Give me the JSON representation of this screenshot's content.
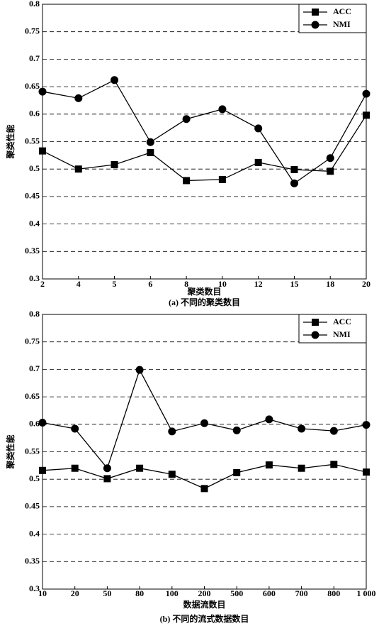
{
  "chart_data": [
    {
      "type": "line",
      "ylabel": "聚类性能",
      "xlabel": "聚类数目",
      "caption": "(a) 不同的聚类数目",
      "categories": [
        "2",
        "4",
        "5",
        "6",
        "8",
        "10",
        "12",
        "15",
        "18",
        "20"
      ],
      "series": [
        {
          "name": "ACC",
          "color": "#000000",
          "marker": "square",
          "values": [
            0.533,
            0.5,
            0.508,
            0.53,
            0.479,
            0.481,
            0.512,
            0.499,
            0.496,
            0.598
          ]
        },
        {
          "name": "NMI",
          "color": "#000000",
          "marker": "circle",
          "values": [
            0.641,
            0.629,
            0.662,
            0.549,
            0.591,
            0.609,
            0.574,
            0.474,
            0.52,
            0.637
          ]
        }
      ],
      "ylim": [
        0.3,
        0.8
      ],
      "yticks": [
        0.3,
        0.35,
        0.4,
        0.45,
        0.5,
        0.55,
        0.6,
        0.65,
        0.7,
        0.75,
        0.8
      ],
      "grid": true,
      "legend": "upper right"
    },
    {
      "type": "line",
      "ylabel": "聚类性能",
      "xlabel": "数据流数目",
      "caption": "(b) 不同的流式数据数目",
      "categories": [
        "10",
        "20",
        "50",
        "80",
        "100",
        "200",
        "500",
        "600",
        "700",
        "800",
        "1 000"
      ],
      "series": [
        {
          "name": "ACC",
          "color": "#000000",
          "marker": "square",
          "values": [
            0.516,
            0.52,
            0.501,
            0.52,
            0.509,
            0.483,
            0.512,
            0.526,
            0.52,
            0.527,
            0.513
          ]
        },
        {
          "name": "NMI",
          "color": "#000000",
          "marker": "circle",
          "values": [
            0.603,
            0.592,
            0.52,
            0.699,
            0.587,
            0.602,
            0.589,
            0.609,
            0.592,
            0.588,
            0.599
          ]
        }
      ],
      "ylim": [
        0.3,
        0.8
      ],
      "yticks": [
        0.3,
        0.35,
        0.4,
        0.45,
        0.5,
        0.55,
        0.6,
        0.65,
        0.7,
        0.75,
        0.8
      ],
      "grid": true,
      "legend": "upper right"
    }
  ]
}
